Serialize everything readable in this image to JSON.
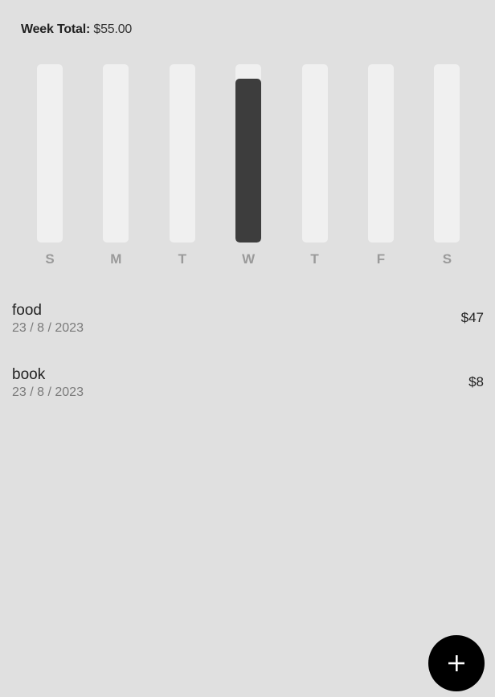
{
  "header": {
    "week_total_label": "Week Total:",
    "week_total_value": "$55.00"
  },
  "chart_data": {
    "type": "bar",
    "categories": [
      "S",
      "M",
      "T",
      "W",
      "T",
      "F",
      "S"
    ],
    "values": [
      0,
      0,
      0,
      55,
      0,
      0,
      0
    ],
    "ylim": [
      0,
      60
    ],
    "title": "",
    "xlabel": "",
    "ylabel": ""
  },
  "expenses": [
    {
      "title": "food",
      "date": "23 / 8 / 2023",
      "amount": "$47"
    },
    {
      "title": "book",
      "date": "23 / 8 / 2023",
      "amount": "$8"
    }
  ],
  "fab": {
    "icon": "plus-icon"
  },
  "colors": {
    "background": "#e0e0e0",
    "bar_track": "#f0f0f0",
    "bar_fill": "#3d3d3d",
    "fab": "#000000"
  }
}
